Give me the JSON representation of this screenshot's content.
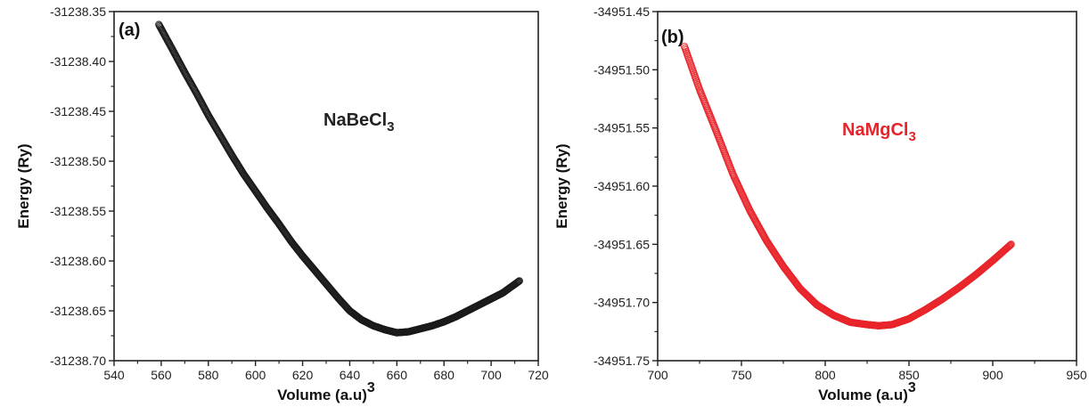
{
  "chart_data": [
    {
      "type": "scatter",
      "panel_label": "(a)",
      "annotation": {
        "text": "NaBeCl",
        "subscript": "3",
        "color": "#222222"
      },
      "xlabel": "Volume (a.u)",
      "xlabel_superscript": "3",
      "ylabel": "Energy (Ry)",
      "xlim": [
        540,
        720
      ],
      "ylim": [
        -31238.7,
        -31238.35
      ],
      "xticks": [
        "540",
        "560",
        "580",
        "600",
        "620",
        "640",
        "660",
        "680",
        "700",
        "720"
      ],
      "yticks": [
        "-31238.35",
        "-31238.40",
        "-31238.45",
        "-31238.50",
        "-31238.55",
        "-31238.60",
        "-31238.65",
        "-31238.70"
      ],
      "grid": false,
      "series": [
        {
          "color": "#1a1a1a",
          "x": [
            559,
            565,
            570,
            575,
            580,
            585,
            590,
            595,
            600,
            605,
            610,
            615,
            620,
            625,
            630,
            635,
            640,
            645,
            650,
            655,
            660,
            665,
            670,
            675,
            680,
            685,
            690,
            695,
            700,
            705,
            712
          ],
          "y": [
            -31238.363,
            -31238.389,
            -31238.411,
            -31238.432,
            -31238.454,
            -31238.474,
            -31238.494,
            -31238.513,
            -31238.53,
            -31238.547,
            -31238.563,
            -31238.58,
            -31238.595,
            -31238.609,
            -31238.623,
            -31238.637,
            -31238.65,
            -31238.659,
            -31238.665,
            -31238.669,
            -31238.672,
            -31238.671,
            -31238.668,
            -31238.665,
            -31238.661,
            -31238.656,
            -31238.65,
            -31238.644,
            -31238.638,
            -31238.632,
            -31238.62
          ]
        }
      ]
    },
    {
      "type": "scatter",
      "panel_label": "(b)",
      "annotation": {
        "text": "NaMgCl",
        "subscript": "3",
        "color": "#e8242a"
      },
      "xlabel": "Volume (a.u)",
      "xlabel_superscript": "3",
      "ylabel": "Energy (Ry)",
      "xlim": [
        700,
        950
      ],
      "ylim": [
        -34951.75,
        -34951.45
      ],
      "xticks": [
        "700",
        "750",
        "800",
        "850",
        "900",
        "950"
      ],
      "yticks": [
        "-34951.45",
        "-34951.50",
        "-34951.55",
        "-34951.60",
        "-34951.65",
        "-34951.70",
        "-34951.75"
      ],
      "grid": false,
      "series": [
        {
          "color": "#e8242a",
          "x": [
            716,
            725,
            735,
            745,
            755,
            765,
            775,
            785,
            795,
            805,
            815,
            825,
            832,
            840,
            850,
            860,
            870,
            880,
            890,
            900,
            911
          ],
          "y": [
            -34951.48,
            -34951.517,
            -34951.553,
            -34951.59,
            -34951.621,
            -34951.647,
            -34951.669,
            -34951.688,
            -34951.702,
            -34951.711,
            -34951.717,
            -34951.719,
            -34951.72,
            -34951.719,
            -34951.714,
            -34951.706,
            -34951.697,
            -34951.687,
            -34951.676,
            -34951.664,
            -34951.65
          ]
        }
      ]
    }
  ]
}
